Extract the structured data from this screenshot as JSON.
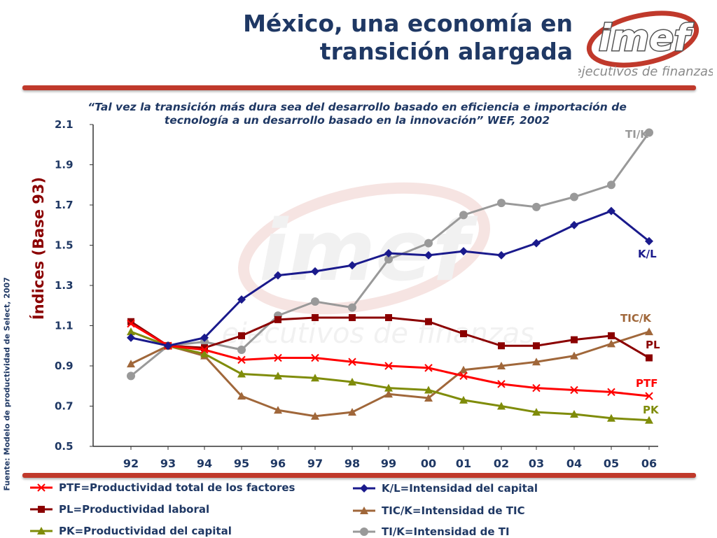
{
  "slide": {
    "title_line1": "México, una economía en",
    "title_line2": "transición alargada",
    "quote_line1": "“Tal vez la transición más dura sea del desarrollo basado en eficiencia e importación de",
    "quote_line2": "tecnología a un desarrollo basado en la innovación” WEF, 2002",
    "source": "Fuente: Modelo de productividad de Select, 2007",
    "logo_text": "imef",
    "logo_subtitle": "ejecutivos de finanzas",
    "watermark_text": "imef",
    "watermark_subtitle": "ejecutivos de finanzas"
  },
  "colors": {
    "title": "#1f3864",
    "rule": "#c0392b",
    "PTF": "#ff0000",
    "PL": "#8b0000",
    "PK": "#7f8c0a",
    "K/L": "#1a1a8c",
    "TIC/K": "#a0673a",
    "TI/K": "#999999"
  },
  "chart_data": {
    "type": "line",
    "ylabel": "Índices (Base 93)",
    "xlabel": "",
    "ylim": [
      0.5,
      2.1
    ],
    "yticks": [
      "0.5",
      "0.7",
      "0.9",
      "1.1",
      "1.3",
      "1.5",
      "1.7",
      "1.9",
      "2.1"
    ],
    "categories": [
      "92",
      "93",
      "94",
      "95",
      "96",
      "97",
      "98",
      "99",
      "00",
      "01",
      "02",
      "03",
      "04",
      "05",
      "06"
    ],
    "grid": false,
    "series": [
      {
        "name": "PTF",
        "marker": "x",
        "values": [
          1.11,
          1.0,
          0.98,
          0.93,
          0.94,
          0.94,
          0.92,
          0.9,
          0.89,
          0.85,
          0.81,
          0.79,
          0.78,
          0.77,
          0.75
        ]
      },
      {
        "name": "PL",
        "marker": "square",
        "values": [
          1.12,
          1.0,
          0.99,
          1.05,
          1.13,
          1.14,
          1.14,
          1.14,
          1.12,
          1.06,
          1.0,
          1.0,
          1.03,
          1.05,
          0.94
        ]
      },
      {
        "name": "PK",
        "marker": "triangle",
        "values": [
          1.07,
          1.0,
          0.96,
          0.86,
          0.85,
          0.84,
          0.82,
          0.79,
          0.78,
          0.73,
          0.7,
          0.67,
          0.66,
          0.64,
          0.63
        ]
      },
      {
        "name": "K/L",
        "marker": "diamond",
        "values": [
          1.04,
          1.0,
          1.04,
          1.23,
          1.35,
          1.37,
          1.4,
          1.46,
          1.45,
          1.47,
          1.45,
          1.51,
          1.6,
          1.67,
          1.52
        ]
      },
      {
        "name": "TIC/K",
        "marker": "triangle",
        "values": [
          0.91,
          1.0,
          0.95,
          0.75,
          0.68,
          0.65,
          0.67,
          0.76,
          0.74,
          0.88,
          0.9,
          0.92,
          0.95,
          1.01,
          1.07
        ]
      },
      {
        "name": "TI/K",
        "marker": "circle",
        "values": [
          0.85,
          1.0,
          1.02,
          0.98,
          1.15,
          1.22,
          1.19,
          1.43,
          1.51,
          1.65,
          1.71,
          1.69,
          1.74,
          1.8,
          2.06
        ]
      }
    ],
    "end_labels": [
      "TI/K",
      "K/L",
      "TIC/K",
      "PL",
      "PTF",
      "PK"
    ],
    "legend": [
      {
        "label": "PTF=Productividad total de los factores",
        "series": "PTF"
      },
      {
        "label": "PL=Productividad laboral",
        "series": "PL"
      },
      {
        "label": "PK=Productividad del capital",
        "series": "PK"
      },
      {
        "label": "K/L=Intensidad del capital",
        "series": "K/L"
      },
      {
        "label": "TIC/K=Intensidad de TIC",
        "series": "TIC/K"
      },
      {
        "label": "TI/K=Intensidad de TI",
        "series": "TI/K"
      }
    ],
    "legend_position": "bottom"
  }
}
